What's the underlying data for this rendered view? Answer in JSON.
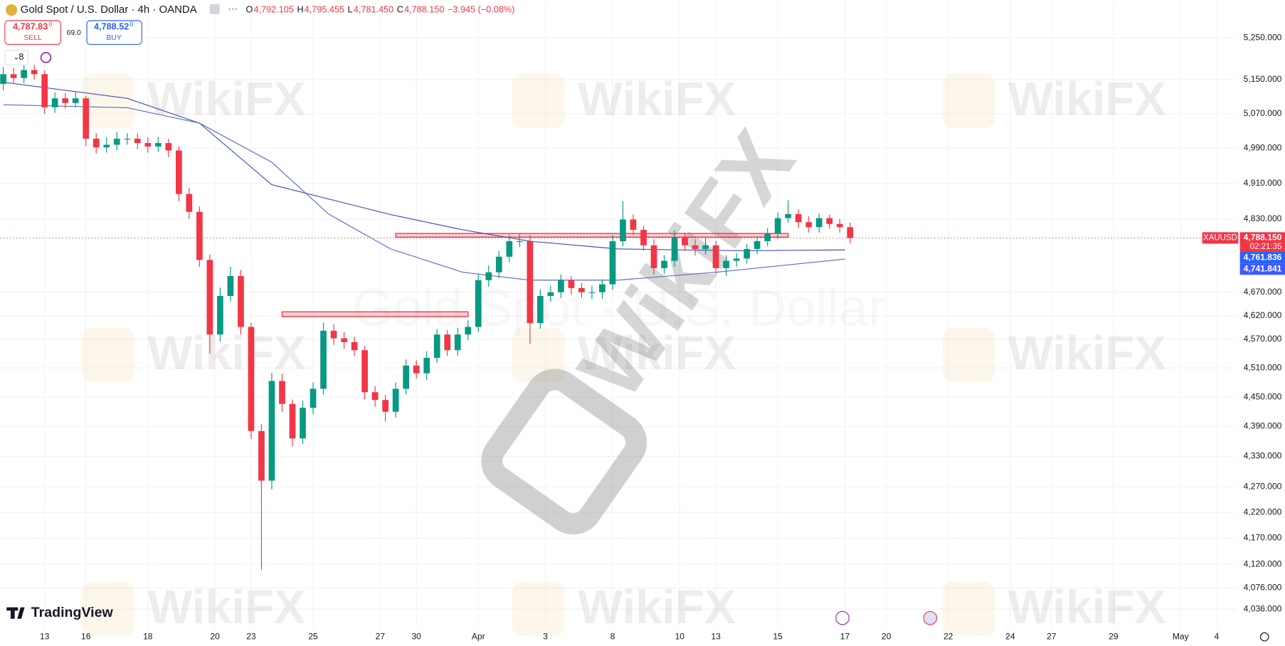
{
  "header": {
    "symbol": "Gold Spot / U.S. Dollar · 4h · OANDA",
    "ohlc": [
      {
        "label": "O",
        "value": "4,792.105"
      },
      {
        "label": "H",
        "value": "4,795.455"
      },
      {
        "label": "L",
        "value": "4,781.450"
      },
      {
        "label": "C",
        "value": "4,788.150"
      }
    ],
    "change": "−3.945 (−0.08%)",
    "sell": {
      "price": "4,787.83",
      "pip": "0",
      "label": "SELL"
    },
    "buy": {
      "price": "4,788.52",
      "pip": "0",
      "label": "BUY"
    },
    "spread": "69.0",
    "indicators": "8"
  },
  "branding": {
    "logo": "TradingView",
    "watermark": "WikiFX",
    "symbol_watermark": "Gold Spot · U.S. Dollar"
  },
  "chart_data": {
    "type": "candlestick",
    "log": true,
    "grid": true,
    "up_color": "#089981",
    "down_color": "#f23645",
    "xlim": [
      0,
      246
    ],
    "ylim": [
      4000,
      5330
    ],
    "xticks": [
      {
        "value": 8,
        "label": "13"
      },
      {
        "value": 16,
        "label": "16"
      },
      {
        "value": 28,
        "label": "18"
      },
      {
        "value": 41,
        "label": "20"
      },
      {
        "value": 48,
        "label": "23"
      },
      {
        "value": 60,
        "label": "25"
      },
      {
        "value": 73,
        "label": "27"
      },
      {
        "value": 80,
        "label": "30"
      },
      {
        "value": 92,
        "label": "Apr"
      },
      {
        "value": 105,
        "label": "3"
      },
      {
        "value": 118,
        "label": "8"
      },
      {
        "value": 131,
        "label": "10"
      },
      {
        "value": 138,
        "label": "13"
      },
      {
        "value": 150,
        "label": "15"
      },
      {
        "value": 163,
        "label": "17"
      },
      {
        "value": 171,
        "label": "20"
      },
      {
        "value": 183,
        "label": "22"
      },
      {
        "value": 195,
        "label": "24"
      },
      {
        "value": 203,
        "label": "27"
      },
      {
        "value": 215,
        "label": "29"
      },
      {
        "value": 228,
        "label": "May"
      },
      {
        "value": 235,
        "label": "4"
      }
    ],
    "yticks": [
      {
        "value": 5250,
        "label": "5,250.000"
      },
      {
        "value": 5150,
        "label": "5,150.000"
      },
      {
        "value": 5070,
        "label": "5,070.000"
      },
      {
        "value": 4990,
        "label": "4,990.000"
      },
      {
        "value": 4910,
        "label": "4,910.000"
      },
      {
        "value": 4830,
        "label": "4,830.000"
      },
      {
        "value": 4670,
        "label": "4,670.000"
      },
      {
        "value": 4620,
        "label": "4,620.000"
      },
      {
        "value": 4570,
        "label": "4,570.000"
      },
      {
        "value": 4510,
        "label": "4,510.000"
      },
      {
        "value": 4450,
        "label": "4,450.000"
      },
      {
        "value": 4390,
        "label": "4,390.000"
      },
      {
        "value": 4330,
        "label": "4,330.000"
      },
      {
        "value": 4270,
        "label": "4,270.000"
      },
      {
        "value": 4220,
        "label": "4,220.000"
      },
      {
        "value": 4170,
        "label": "4,170.000"
      },
      {
        "value": 4120,
        "label": "4,120.000"
      },
      {
        "value": 4076,
        "label": "4,076.000"
      },
      {
        "value": 4036,
        "label": "4,036.000"
      }
    ],
    "x": [
      0,
      2,
      4,
      6,
      8,
      10,
      12,
      14,
      16,
      18,
      20,
      22,
      24,
      26,
      28,
      30,
      32,
      34,
      36,
      38,
      40,
      42,
      44,
      46,
      48,
      50,
      52,
      54,
      56,
      58,
      60,
      62,
      64,
      66,
      68,
      70,
      72,
      74,
      76,
      78,
      80,
      82,
      84,
      86,
      88,
      90,
      92,
      94,
      96,
      98,
      100,
      102,
      104,
      106,
      108,
      110,
      112,
      114,
      116,
      118,
      120,
      122,
      124,
      126,
      128,
      130,
      132,
      134,
      136,
      138,
      140,
      142,
      144,
      146,
      148,
      150,
      152,
      154,
      156,
      158,
      160,
      162,
      164
    ],
    "open": [
      5140,
      5163,
      5154,
      5173,
      5163,
      5085,
      5106,
      5095,
      5106,
      5012,
      4992,
      4998,
      5012,
      5012,
      5002,
      4994,
      5002,
      4985,
      4886,
      4846,
      4740,
      4580,
      4662,
      4705,
      4596,
      4381,
      4282,
      4483,
      4436,
      4366,
      4428,
      4467,
      4588,
      4572,
      4564,
      4547,
      4460,
      4444,
      4420,
      4467,
      4515,
      4499,
      4531,
      4580,
      4547,
      4580,
      4596,
      4696,
      4713,
      4747,
      4781,
      4781,
      4604,
      4662,
      4670,
      4696,
      4679,
      4670,
      4670,
      4687,
      4781,
      4829,
      4806,
      4772,
      4722,
      4738,
      4789,
      4772,
      4764,
      4772,
      4722,
      4738,
      4743,
      4764,
      4781,
      4798,
      4832,
      4841,
      4823,
      4812,
      4832,
      4819,
      4812
    ],
    "high": [
      5180,
      5178,
      5190,
      5185,
      5172,
      5120,
      5118,
      5122,
      5112,
      5025,
      5015,
      5028,
      5025,
      5024,
      5015,
      5016,
      5012,
      4995,
      4900,
      4858,
      4752,
      4680,
      4725,
      4718,
      4605,
      4395,
      4500,
      4498,
      4445,
      4442,
      4480,
      4605,
      4602,
      4585,
      4575,
      4556,
      4472,
      4455,
      4480,
      4528,
      4526,
      4545,
      4592,
      4590,
      4594,
      4610,
      4710,
      4728,
      4760,
      4795,
      4798,
      4795,
      4676,
      4684,
      4708,
      4705,
      4690,
      4684,
      4698,
      4795,
      4870,
      4840,
      4815,
      4785,
      4750,
      4805,
      4800,
      4785,
      4790,
      4782,
      4750,
      4755,
      4775,
      4792,
      4810,
      4845,
      4872,
      4852,
      4836,
      4842,
      4840,
      4830,
      4822
    ],
    "low": [
      5125,
      5140,
      5142,
      5150,
      5070,
      5072,
      5082,
      5085,
      4995,
      4978,
      4980,
      4985,
      4998,
      4988,
      4980,
      4982,
      4970,
      4870,
      4830,
      4725,
      4540,
      4565,
      4650,
      4580,
      4365,
      4110,
      4265,
      4420,
      4350,
      4355,
      4415,
      4455,
      4558,
      4550,
      4535,
      4445,
      4430,
      4400,
      4408,
      4455,
      4488,
      4485,
      4520,
      4535,
      4535,
      4568,
      4585,
      4682,
      4700,
      4735,
      4768,
      4560,
      4592,
      4650,
      4658,
      4665,
      4658,
      4655,
      4656,
      4675,
      4770,
      4795,
      4760,
      4708,
      4710,
      4725,
      4760,
      4750,
      4752,
      4710,
      4705,
      4725,
      4732,
      4752,
      4770,
      4786,
      4822,
      4810,
      4800,
      4800,
      4808,
      4800,
      4776
    ],
    "close": [
      5163,
      5154,
      5173,
      5163,
      5085,
      5106,
      5095,
      5106,
      5012,
      4992,
      4998,
      5012,
      5012,
      5002,
      4994,
      5002,
      4985,
      4886,
      4846,
      4740,
      4580,
      4662,
      4705,
      4596,
      4381,
      4282,
      4483,
      4436,
      4366,
      4428,
      4467,
      4588,
      4572,
      4564,
      4547,
      4460,
      4444,
      4420,
      4467,
      4515,
      4499,
      4531,
      4580,
      4547,
      4580,
      4596,
      4696,
      4713,
      4747,
      4781,
      4781,
      4604,
      4662,
      4670,
      4696,
      4679,
      4670,
      4670,
      4687,
      4781,
      4829,
      4806,
      4772,
      4722,
      4738,
      4789,
      4772,
      4764,
      4772,
      4722,
      4738,
      4743,
      4764,
      4781,
      4798,
      4832,
      4841,
      4823,
      4812,
      4832,
      4819,
      4812,
      4788
    ],
    "series": [
      {
        "color": "#3f51b5",
        "x": [
          0,
          24,
          38,
          52,
          75,
          89,
          102,
          119,
          143,
          163
        ],
        "values": [
          5144,
          5106,
          5048,
          4907,
          4840,
          4806,
          4781,
          4764,
          4760,
          4761.836
        ],
        "last_label": "4,761.836"
      },
      {
        "color": "#5c6bc0",
        "x": [
          0,
          24,
          38,
          52,
          63,
          75,
          89,
          102,
          119,
          138,
          163
        ],
        "values": [
          5091,
          5084,
          5048,
          4958,
          4841,
          4764,
          4713,
          4696,
          4696,
          4713,
          4741.841
        ],
        "last_label": "4,741.841"
      }
    ],
    "zones": [
      {
        "x": [
          76,
          152
        ],
        "y": [
          4790,
          4798
        ]
      },
      {
        "x": [
          54,
          90
        ],
        "y": [
          4618,
          4628
        ]
      }
    ],
    "last_price": {
      "symbol": "XAUUSD",
      "value": 4788.15,
      "label": "4,788.150",
      "countdown": "02:21:35"
    }
  }
}
